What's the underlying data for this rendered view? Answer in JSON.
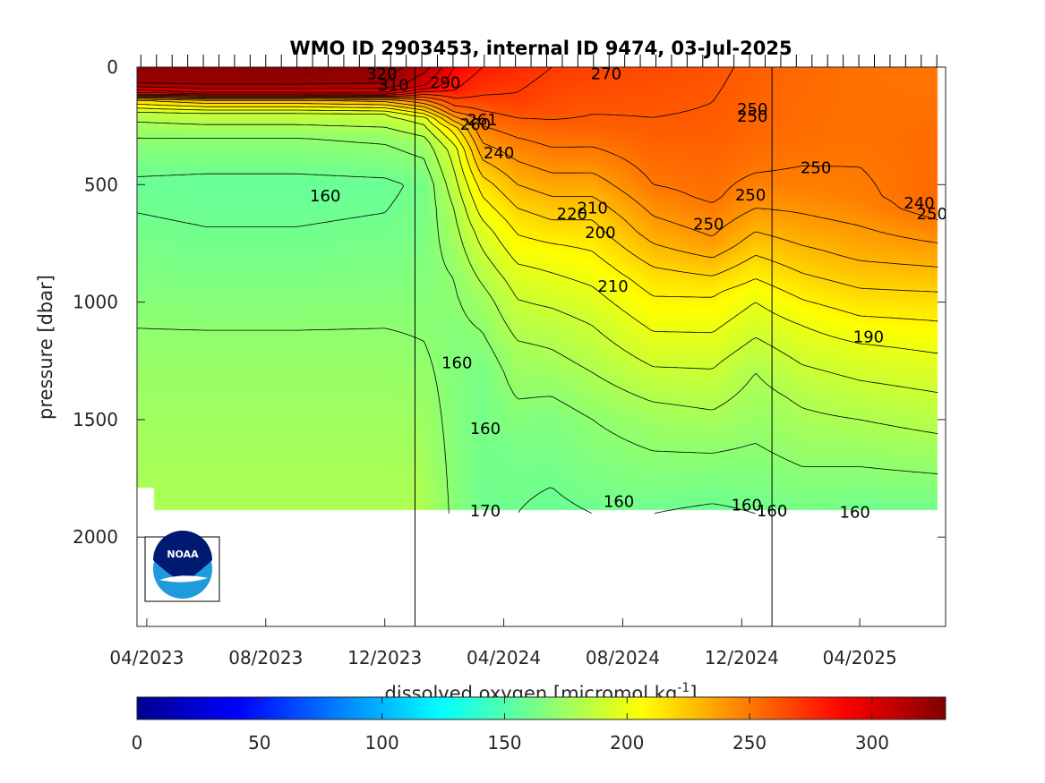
{
  "chart_data": {
    "type": "heatmap",
    "title": "WMO ID 2903453, internal ID 9474, 03-Jul-2025",
    "ylabel": "pressure [dbar]",
    "colorbar_label_main": "dissolved oxygen [micromol kg",
    "colorbar_label_sup": "-1",
    "colorbar_label_close": "]",
    "y_reversed": true,
    "ylim": [
      0,
      2380
    ],
    "xlim": [
      "2023-03-22",
      "2025-06-28"
    ],
    "x_ticks": [
      "04/2023",
      "08/2023",
      "12/2023",
      "04/2024",
      "08/2024",
      "12/2024",
      "04/2025"
    ],
    "y_ticks": [
      "0",
      "500",
      "1000",
      "1500",
      "2000"
    ],
    "colorbar_ticks": [
      "0",
      "50",
      "100",
      "150",
      "200",
      "250",
      "300"
    ],
    "colorbar_range": [
      0,
      330
    ],
    "colormap": "jet",
    "year_lines": [
      "2024-01-01",
      "2025-01-01"
    ],
    "logo": "NOAA",
    "contour_labels": [
      {
        "text": "320",
        "x": "2023-11-28",
        "y": 25
      },
      {
        "text": "310",
        "x": "2023-12-10",
        "y": 72
      },
      {
        "text": "290",
        "x": "2024-02-01",
        "y": 62
      },
      {
        "text": "270",
        "x": "2024-07-15",
        "y": 25
      },
      {
        "text": "260",
        "x": "2024-03-03",
        "y": 240
      },
      {
        "text": "261",
        "x": "2024-03-10",
        "y": 220
      },
      {
        "text": "240",
        "x": "2024-03-27",
        "y": 362
      },
      {
        "text": "250",
        "x": "2024-12-12",
        "y": 175
      },
      {
        "text": "250",
        "x": "2024-12-12",
        "y": 205
      },
      {
        "text": "250",
        "x": "2025-02-15",
        "y": 425
      },
      {
        "text": "160",
        "x": "2023-10-01",
        "y": 545
      },
      {
        "text": "250",
        "x": "2024-12-10",
        "y": 540
      },
      {
        "text": "240",
        "x": "2025-06-01",
        "y": 575
      },
      {
        "text": "250",
        "x": "2025-06-14",
        "y": 620
      },
      {
        "text": "220",
        "x": "2024-06-10",
        "y": 620
      },
      {
        "text": "210",
        "x": "2024-07-01",
        "y": 595
      },
      {
        "text": "200",
        "x": "2024-07-09",
        "y": 700
      },
      {
        "text": "250",
        "x": "2024-10-28",
        "y": 665
      },
      {
        "text": "210",
        "x": "2024-07-22",
        "y": 930
      },
      {
        "text": "190",
        "x": "2025-04-10",
        "y": 1145
      },
      {
        "text": "160",
        "x": "2024-02-13",
        "y": 1255
      },
      {
        "text": "160",
        "x": "2024-03-13",
        "y": 1535
      },
      {
        "text": "170",
        "x": "2024-03-13",
        "y": 1885
      },
      {
        "text": "160",
        "x": "2024-07-28",
        "y": 1845
      },
      {
        "text": "160",
        "x": "2024-12-06",
        "y": 1860
      },
      {
        "text": "160",
        "x": "2025-01-01",
        "y": 1885
      },
      {
        "text": "160",
        "x": "2025-03-27",
        "y": 1890
      }
    ]
  },
  "colors": {
    "frame": "#262626",
    "missing": "#ffffff",
    "logo_navy": "#001a72",
    "logo_sky": "#1e9bdc"
  }
}
